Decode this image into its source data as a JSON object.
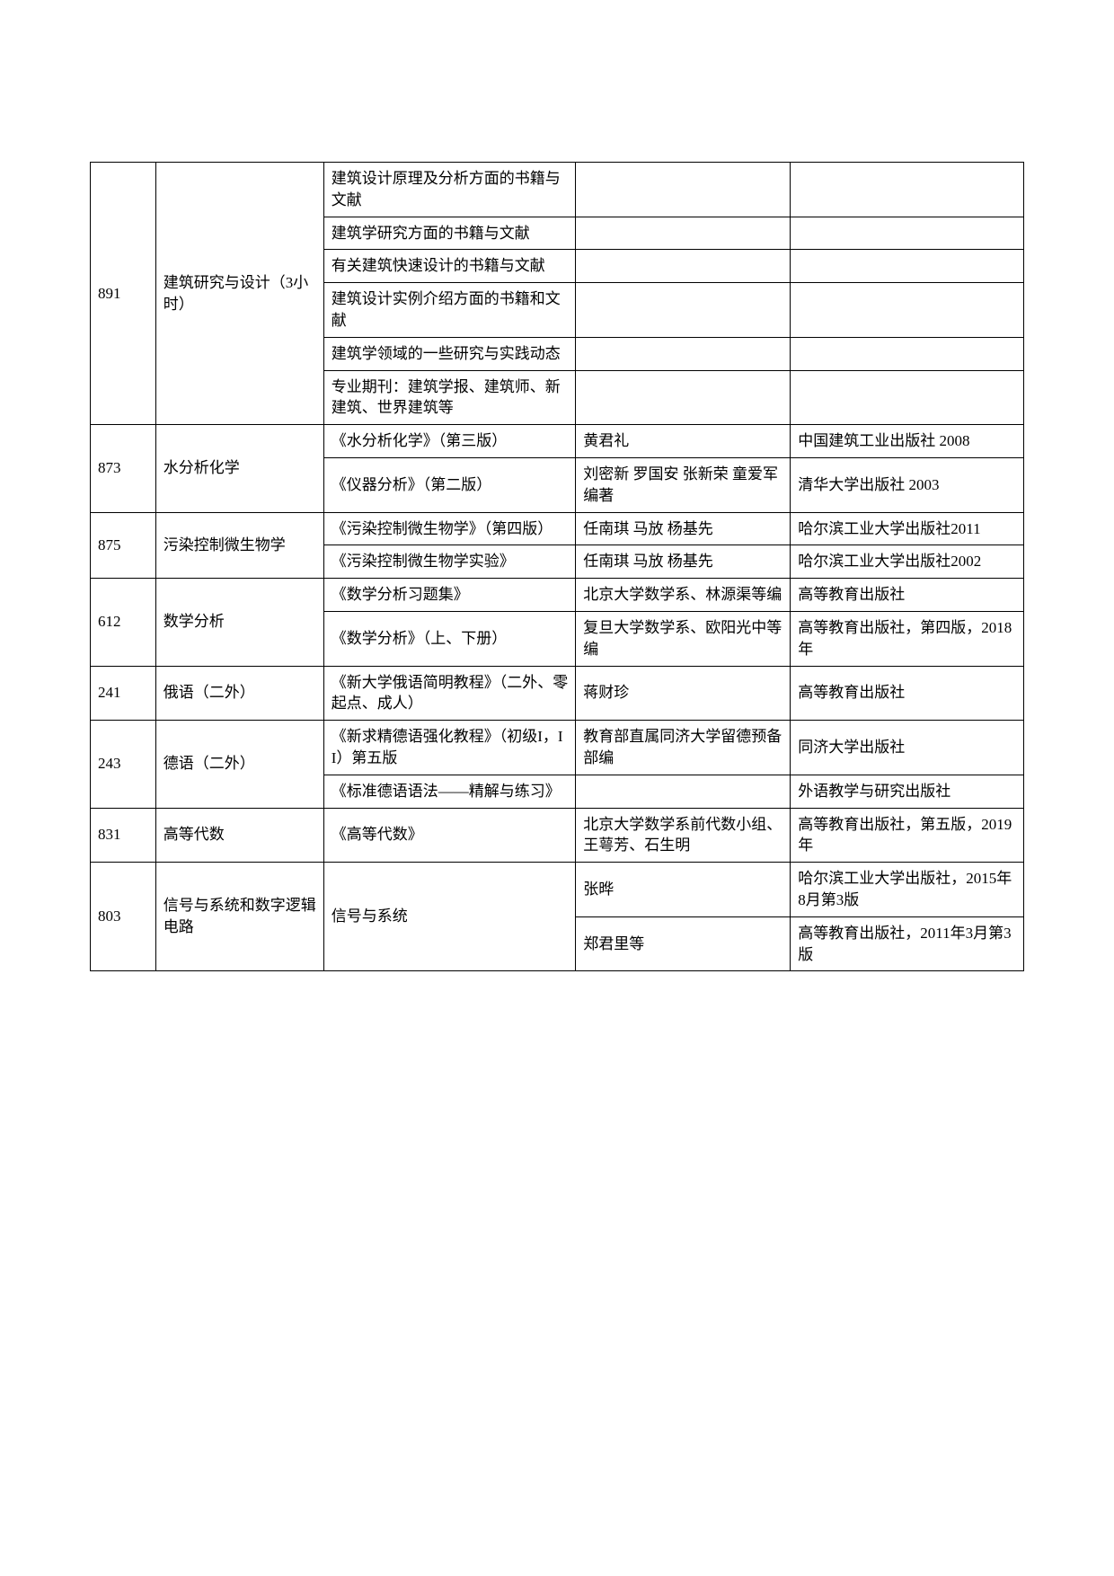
{
  "rows": [
    {
      "c1": "891",
      "c2": "建筑研究与设计（3小时）",
      "c3": "建筑设计原理及分析方面的书籍与文献",
      "c4": "",
      "c5": "",
      "rs1": 6,
      "rs2": 6
    },
    {
      "c3": "建筑学研究方面的书籍与文献",
      "c4": "",
      "c5": ""
    },
    {
      "c3": "有关建筑快速设计的书籍与文献",
      "c4": "",
      "c5": ""
    },
    {
      "c3": "建筑设计实例介绍方面的书籍和文献",
      "c4": "",
      "c5": ""
    },
    {
      "c3": "建筑学领域的一些研究与实践动态",
      "c4": "",
      "c5": ""
    },
    {
      "c3": "专业期刊：建筑学报、建筑师、新建筑、世界建筑等",
      "c4": "",
      "c5": ""
    },
    {
      "c1": "873",
      "c2": "水分析化学",
      "c3": "《水分析化学》（第三版）",
      "c4": "黄君礼",
      "c5": "中国建筑工业出版社 2008",
      "rs1": 2,
      "rs2": 2
    },
    {
      "c3": "《仪器分析》（第二版）",
      "c4": "刘密新 罗国安 张新荣 童爱军编著",
      "c5": "清华大学出版社 2003"
    },
    {
      "c1": "875",
      "c2": "污染控制微生物学",
      "c3": "《污染控制微生物学》（第四版）",
      "c4": "任南琪 马放 杨基先",
      "c5": "哈尔滨工业大学出版社2011",
      "rs1": 2,
      "rs2": 2
    },
    {
      "c3": "《污染控制微生物学实验》",
      "c4": "任南琪 马放 杨基先",
      "c5": "哈尔滨工业大学出版社2002"
    },
    {
      "c1": "612",
      "c2": "数学分析",
      "c3": "《数学分析习题集》",
      "c4": "北京大学数学系、林源渠等编",
      "c5": "高等教育出版社",
      "rs1": 2,
      "rs2": 2
    },
    {
      "c3": "《数学分析》（上、下册）",
      "c4": "复旦大学数学系、欧阳光中等编",
      "c5": "高等教育出版社，第四版，2018年"
    },
    {
      "c1": "241",
      "c2": "俄语（二外）",
      "c3": "《新大学俄语简明教程》（二外、零起点、成人）",
      "c4": "蒋财珍",
      "c5": "高等教育出版社"
    },
    {
      "c1": "243",
      "c2": "德语（二外）",
      "c3": "《新求精德语强化教程》（初级I，II）第五版",
      "c4": "教育部直属同济大学留德预备部编",
      "c5": "同济大学出版社",
      "rs1": 2,
      "rs2": 2
    },
    {
      "c3": "《标准德语语法——精解与练习》",
      "c4": "",
      "c5": "外语教学与研究出版社"
    },
    {
      "c1": "831",
      "c2": "高等代数",
      "c3": "《高等代数》",
      "c4": "北京大学数学系前代数小组、王萼芳、石生明",
      "c5": "高等教育出版社，第五版，2019年"
    },
    {
      "c1": "803",
      "c2": "信号与系统和数字逻辑电路",
      "c3": "信号与系统",
      "c4": "张晔",
      "c5": "哈尔滨工业大学出版社，2015年8月第3版",
      "rs1": 2,
      "rs2": 2,
      "rs3": 2
    },
    {
      "c4": "郑君里等",
      "c5": "高等教育出版社，2011年3月第3版"
    }
  ]
}
